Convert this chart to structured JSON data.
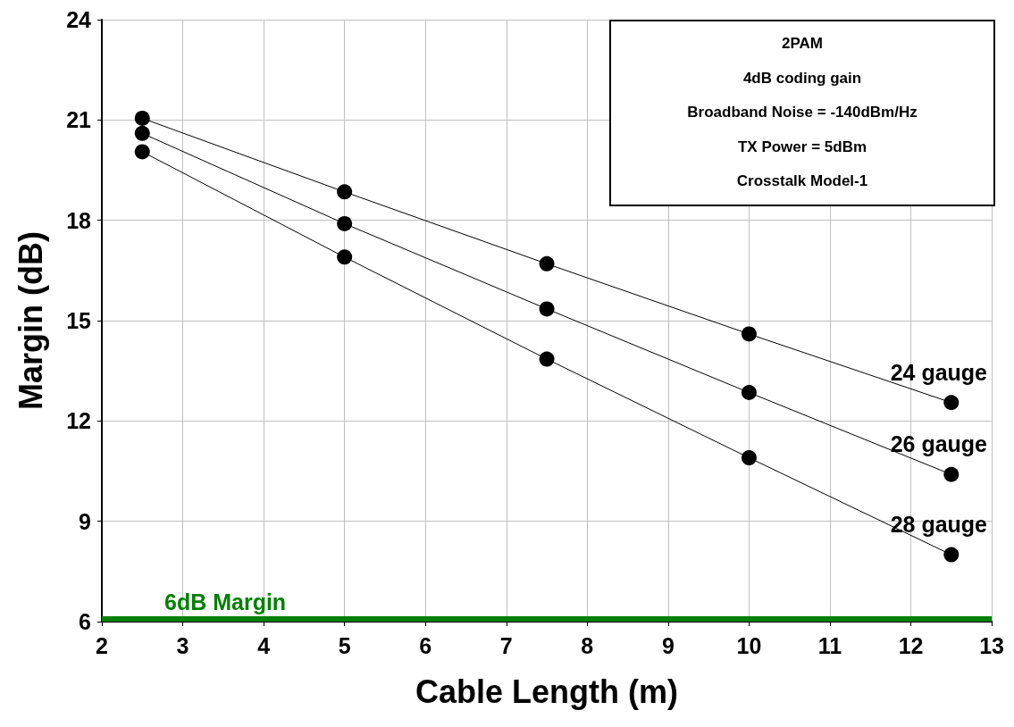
{
  "chart_data": {
    "type": "line",
    "xlabel": "Cable Length (m)",
    "ylabel": "Margin (dB)",
    "x": [
      2.5,
      5,
      7.5,
      10,
      12.5
    ],
    "series": [
      {
        "name": "24 gauge",
        "color": "#000000",
        "values": [
          21.05,
          18.85,
          16.7,
          14.6,
          12.55
        ]
      },
      {
        "name": "26 gauge",
        "color": "#000000",
        "values": [
          20.6,
          17.9,
          15.35,
          12.85,
          10.4
        ]
      },
      {
        "name": "28 gauge",
        "color": "#000000",
        "values": [
          20.05,
          16.9,
          13.85,
          10.9,
          8.0
        ]
      }
    ],
    "xlim": [
      2,
      13
    ],
    "xticks": [
      2,
      3,
      4,
      5,
      6,
      7,
      8,
      9,
      10,
      11,
      12,
      13
    ],
    "ylim": [
      6,
      24
    ],
    "yticks": [
      6,
      9,
      12,
      15,
      18,
      21,
      24
    ],
    "grid": true,
    "marker": "circle",
    "line_style": "solid",
    "legend": false,
    "ref_lines": [
      {
        "axis": "y",
        "value": 6.1,
        "label": "6dB Margin",
        "color": "#008000"
      }
    ],
    "annotations": [
      "2PAM",
      "4dB coding gain",
      "Broadband Noise = -140dBm/Hz",
      "TX Power = 5dBm",
      "Crosstalk Model-1"
    ]
  }
}
